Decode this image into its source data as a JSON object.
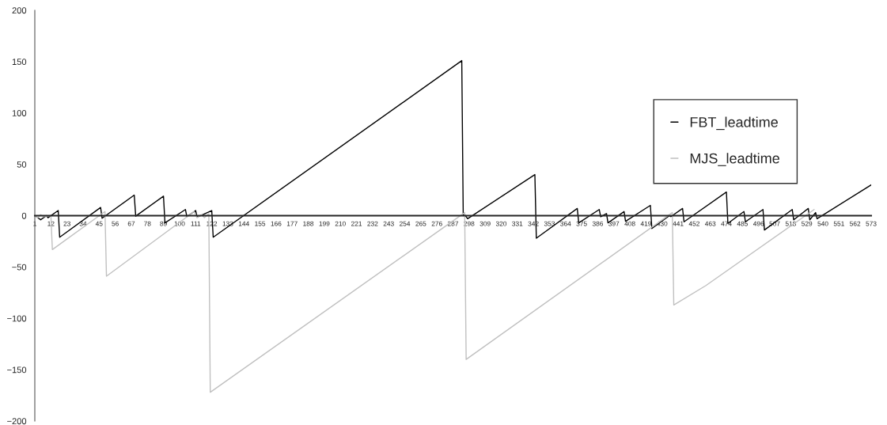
{
  "chart_data": {
    "type": "line",
    "xlim": [
      1,
      573
    ],
    "xticks": [
      1,
      12,
      23,
      34,
      45,
      56,
      67,
      78,
      89,
      100,
      111,
      122,
      133,
      144,
      155,
      166,
      177,
      188,
      199,
      210,
      221,
      232,
      243,
      254,
      265,
      276,
      287,
      298,
      309,
      320,
      331,
      342,
      353,
      364,
      375,
      386,
      397,
      408,
      419,
      430,
      441,
      452,
      463,
      474,
      485,
      496,
      507,
      518,
      529,
      540,
      551,
      562,
      573
    ],
    "ylim": [
      -200,
      200
    ],
    "yticks": [
      {
        "value": -200,
        "label": "−200"
      },
      {
        "value": -150,
        "label": "−150"
      },
      {
        "value": -100,
        "label": "−100"
      },
      {
        "value": -50,
        "label": "−50"
      },
      0,
      50,
      100,
      150,
      200
    ],
    "grid": false,
    "legend": "top right",
    "marker": "none",
    "line_style": "solid",
    "series": [
      {
        "name": "FBT_leadtime",
        "color": "#000000",
        "x": [
          1,
          2,
          5,
          9,
          10,
          17,
          18,
          46,
          47,
          69,
          70,
          89,
          90,
          104,
          105,
          111,
          112,
          119,
          122,
          123,
          293,
          294,
          295,
          297,
          343,
          344,
          372,
          373,
          387,
          388,
          392,
          393,
          404,
          405,
          422,
          423,
          435,
          436,
          444,
          445,
          474,
          475,
          486,
          487,
          499,
          500,
          519,
          520,
          530,
          531,
          535,
          536,
          573
        ],
        "values": [
          0,
          -1,
          -4,
          0,
          -2,
          5,
          -21,
          8,
          -2.5,
          20,
          -0.5,
          19,
          -7,
          6,
          -1,
          5,
          -1.5,
          3,
          5,
          -21,
          151,
          0,
          1,
          -3,
          40,
          -22,
          7,
          -7,
          6,
          -1,
          2,
          -7,
          4,
          -5.5,
          10,
          -12.5,
          0,
          -1,
          7,
          -6,
          23,
          -7.5,
          4,
          -6,
          6,
          -14,
          6,
          -4,
          7,
          -4,
          3,
          -3,
          30
        ]
      },
      {
        "name": "MJS_leadtime",
        "color": "#c0c0c0",
        "x": [
          1,
          3,
          5,
          7,
          12,
          13,
          49,
          50,
          110,
          112,
          115,
          117,
          120,
          121,
          295,
          296,
          437,
          438,
          460,
          534
        ],
        "values": [
          0,
          -2,
          1,
          -1,
          0,
          -33,
          4,
          -59,
          4,
          -2,
          1,
          -2,
          2,
          -172,
          3,
          -140,
          3,
          -87,
          -68,
          6
        ]
      }
    ]
  }
}
